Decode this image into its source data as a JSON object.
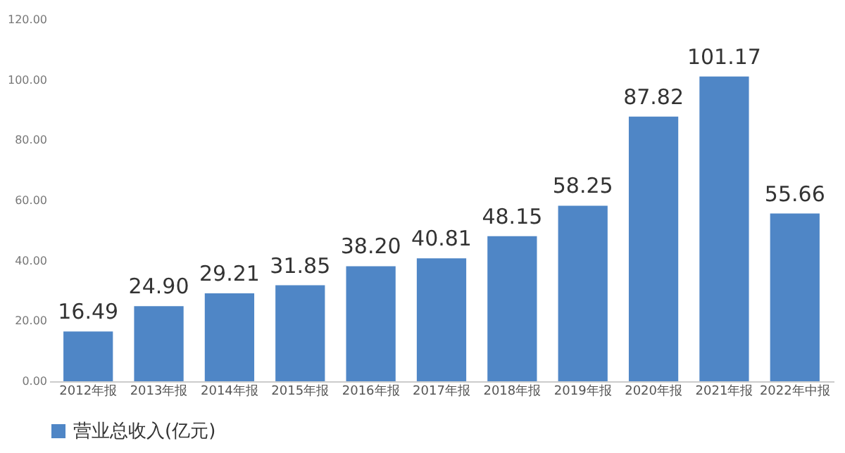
{
  "chart_data": {
    "type": "bar",
    "categories": [
      "2012年报",
      "2013年报",
      "2014年报",
      "2015年报",
      "2016年报",
      "2017年报",
      "2018年报",
      "2019年报",
      "2020年报",
      "2021年报",
      "2022年中报"
    ],
    "series": [
      {
        "name": "营业总收入(亿元)",
        "color": "#4f86c6",
        "values": [
          16.49,
          24.9,
          29.21,
          31.85,
          38.2,
          40.81,
          48.15,
          58.25,
          87.82,
          101.17,
          55.66
        ]
      }
    ],
    "value_labels": [
      "16.49",
      "24.90",
      "29.21",
      "31.85",
      "38.20",
      "40.81",
      "48.15",
      "58.25",
      "87.82",
      "101.17",
      "55.66"
    ],
    "ylim": [
      0,
      120
    ],
    "yticks": [
      {
        "value": 0,
        "label": "0.00"
      },
      {
        "value": 20,
        "label": "20.00"
      },
      {
        "value": 40,
        "label": "40.00"
      },
      {
        "value": 60,
        "label": "60.00"
      },
      {
        "value": 80,
        "label": "80.00"
      },
      {
        "value": 100,
        "label": "100.00"
      },
      {
        "value": 120,
        "label": "120.00"
      }
    ],
    "grid": false,
    "legend": "bottom"
  }
}
